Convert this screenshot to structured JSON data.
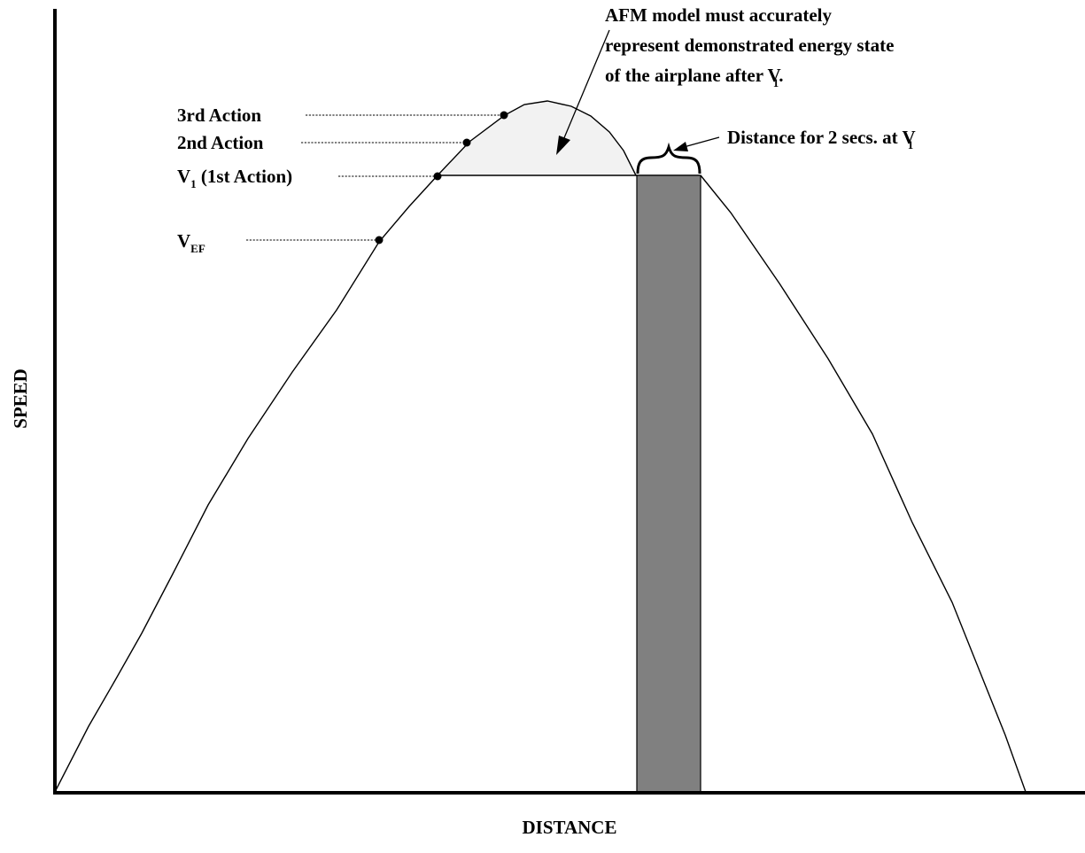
{
  "axes": {
    "y_label": "SPEED",
    "x_label": "DISTANCE"
  },
  "labels": {
    "v_ef": {
      "main": "V",
      "sub": "EF"
    },
    "v1_first_action": {
      "main": "V",
      "sub": "1",
      "rest": " (1st Action)"
    },
    "second_action": "2nd Action",
    "third_action": "3rd Action"
  },
  "callouts": {
    "afm_model": {
      "lines": [
        "AFM model must accurately",
        "represent demonstrated energy state",
        "of the airplane after V"
      ],
      "sub": "1",
      "end": "."
    },
    "distance_2_secs": {
      "text": "Distance for 2 secs. at V",
      "sub": "1"
    }
  },
  "colors": {
    "shaded_region": "#f2f2f2",
    "two_second_bar": "#808080",
    "axes": "#000000"
  }
}
